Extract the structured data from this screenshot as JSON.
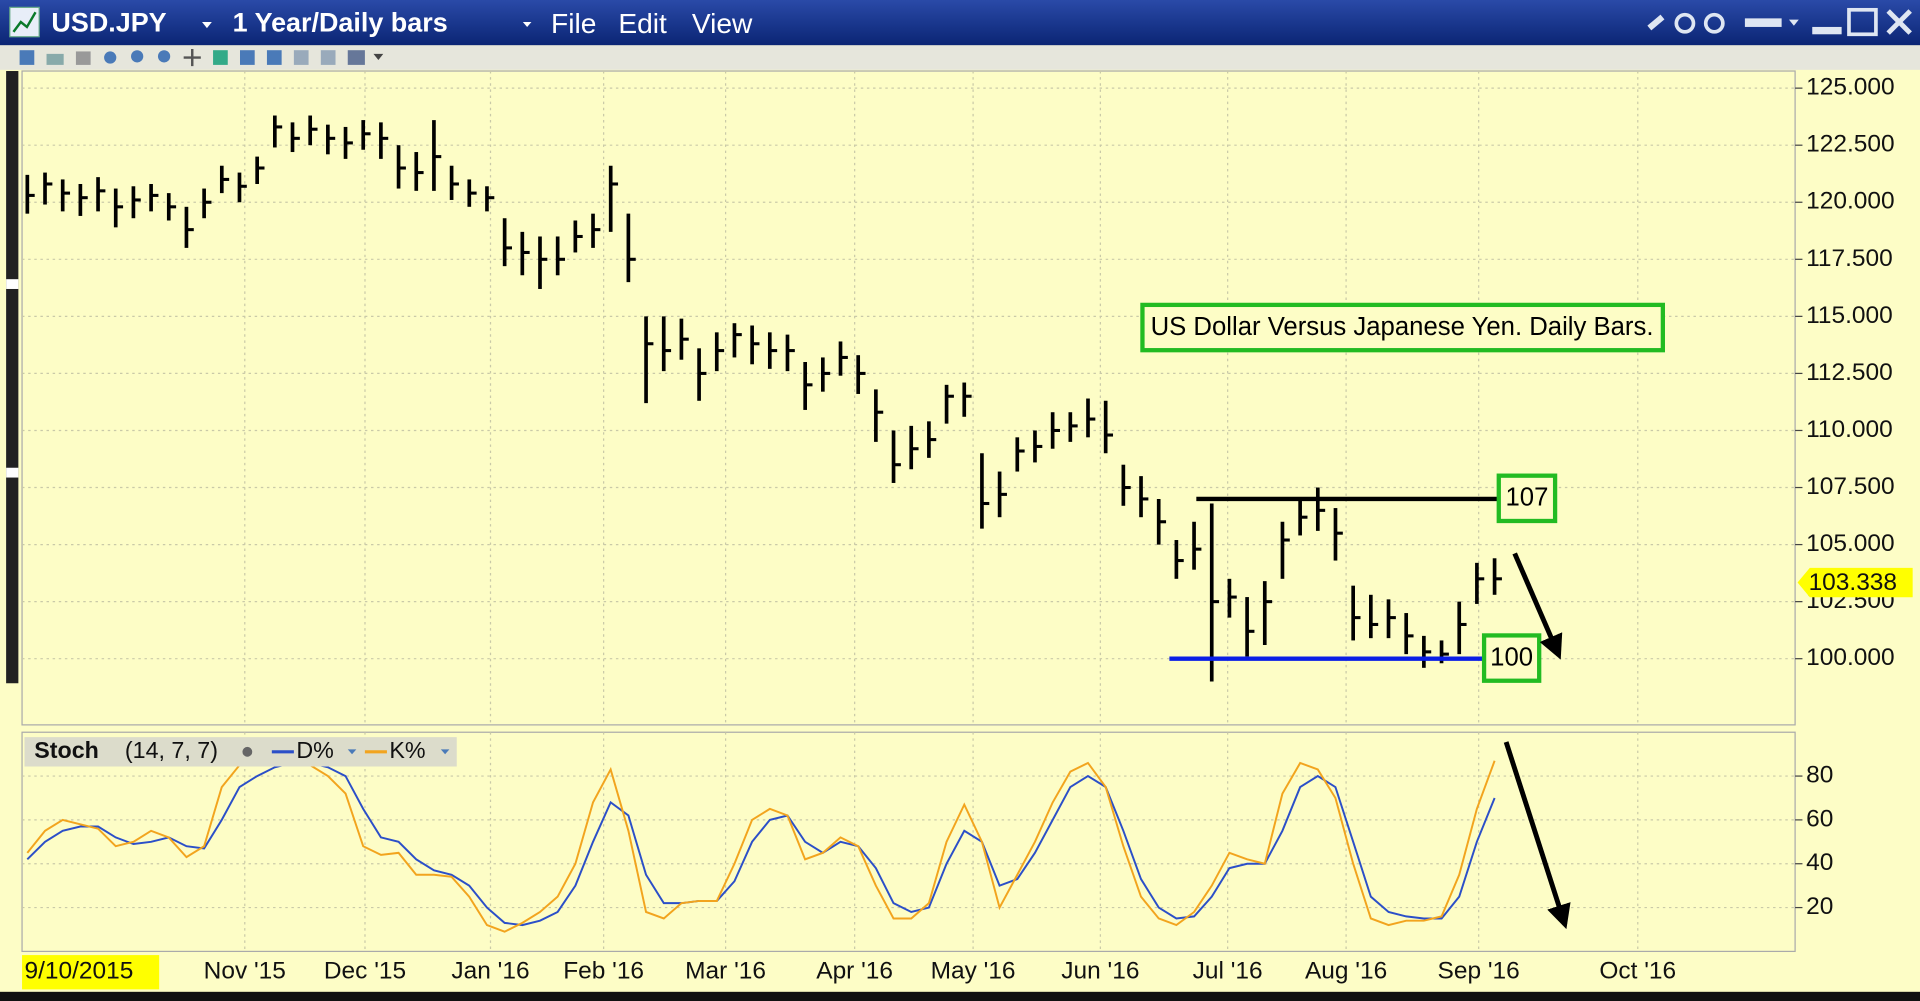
{
  "window": {
    "symbol": "USD.JPY",
    "period": "1 Year/Daily bars",
    "menu": [
      "File",
      "Edit",
      "View"
    ]
  },
  "chart_data": [
    {
      "type": "ohlc",
      "annotation": "US Dollar Versus Japanese Yen. Daily Bars.",
      "series": [
        {
          "color": "#000000",
          "high": [
            121.2,
            121.3,
            121.0,
            120.8,
            121.1,
            120.6,
            120.7,
            120.8,
            120.4,
            119.8,
            120.6,
            121.6,
            121.3,
            122.0,
            123.8,
            123.5,
            123.8,
            123.4,
            123.3,
            123.6,
            123.5,
            122.5,
            122.2,
            123.6,
            121.6,
            121.0,
            120.7,
            119.3,
            118.7,
            118.5,
            118.5,
            119.2,
            119.5,
            121.6,
            119.5,
            115.0,
            115.0,
            114.9,
            113.6,
            114.3,
            114.7,
            114.6,
            114.3,
            114.2,
            113.0,
            113.2,
            113.9,
            113.3,
            111.8,
            110.0,
            110.2,
            110.4,
            112.0,
            112.1,
            109.0,
            108.2,
            109.7,
            110.0,
            110.8,
            110.8,
            111.4,
            111.3,
            108.5,
            108.0,
            107.0,
            105.2,
            106.0,
            106.8,
            103.5,
            102.7,
            103.4,
            106.0,
            107.0,
            107.5,
            106.6,
            103.2,
            102.8,
            102.6,
            102.0,
            101.0,
            100.8,
            102.5,
            104.2,
            104.4
          ],
          "low": [
            119.5,
            119.9,
            119.6,
            119.4,
            119.6,
            118.9,
            119.3,
            119.6,
            119.2,
            118.0,
            119.3,
            120.4,
            120.0,
            120.8,
            122.4,
            122.2,
            122.5,
            122.1,
            121.9,
            122.3,
            121.9,
            120.6,
            120.5,
            120.5,
            120.1,
            119.8,
            119.6,
            117.2,
            116.8,
            116.2,
            116.8,
            117.8,
            118.0,
            118.7,
            116.5,
            111.2,
            112.6,
            113.1,
            111.3,
            112.6,
            113.2,
            112.9,
            112.7,
            112.6,
            110.9,
            111.7,
            112.4,
            111.6,
            109.5,
            107.7,
            108.3,
            108.8,
            110.3,
            110.6,
            105.7,
            106.2,
            108.2,
            108.6,
            109.2,
            109.5,
            109.7,
            109.0,
            106.7,
            106.2,
            105.0,
            103.5,
            103.9,
            99.0,
            101.8,
            100.1,
            100.6,
            103.5,
            105.4,
            105.6,
            104.3,
            100.8,
            100.9,
            100.9,
            100.2,
            99.6,
            99.8,
            100.2,
            102.4,
            102.8
          ],
          "close": [
            120.3,
            120.8,
            120.4,
            120.2,
            120.5,
            119.8,
            120.1,
            120.3,
            119.8,
            118.8,
            120.0,
            121.0,
            120.7,
            121.5,
            123.3,
            122.8,
            123.2,
            122.8,
            122.6,
            123.0,
            122.8,
            121.5,
            121.3,
            122.0,
            120.8,
            120.4,
            120.2,
            118.0,
            117.8,
            117.5,
            117.5,
            118.5,
            118.8,
            120.8,
            117.5,
            113.8,
            113.5,
            114.0,
            112.5,
            113.5,
            114.2,
            113.8,
            113.5,
            113.5,
            112.0,
            112.5,
            113.2,
            112.5,
            110.8,
            108.5,
            109.2,
            109.6,
            111.5,
            111.5,
            106.8,
            107.2,
            109.1,
            109.3,
            110.0,
            110.2,
            110.5,
            109.8,
            107.5,
            107.0,
            106.0,
            104.3,
            104.8,
            102.5,
            102.7,
            101.2,
            102.5,
            105.2,
            106.2,
            106.5,
            105.5,
            101.8,
            101.5,
            101.8,
            101.0,
            100.3,
            100.2,
            101.5,
            103.5,
            103.5
          ]
        }
      ],
      "xlim": [
        -0.3,
        100
      ],
      "ylim": [
        97.1,
        125.75
      ],
      "yticks": [
        {
          "value": 100,
          "label": "100.000"
        },
        {
          "value": 102.5,
          "label": "102.500"
        },
        {
          "value": 105,
          "label": "105.000"
        },
        {
          "value": 107.5,
          "label": "107.500"
        },
        {
          "value": 110,
          "label": "110.000"
        },
        {
          "value": 112.5,
          "label": "112.500"
        },
        {
          "value": 115,
          "label": "115.000"
        },
        {
          "value": 117.5,
          "label": "117.500"
        },
        {
          "value": 120,
          "label": "120.000"
        },
        {
          "value": 122.5,
          "label": "122.500"
        },
        {
          "value": 125,
          "label": "125.000"
        }
      ],
      "grid": true,
      "last_price": 103.338,
      "levels": [
        {
          "value": 107,
          "label": "107",
          "color": "#000000"
        },
        {
          "value": 100,
          "label": "100",
          "color": "#0a1ee6"
        }
      ]
    },
    {
      "type": "line",
      "indicator": "Stoch",
      "params": "(14, 7, 7)",
      "series": [
        {
          "name": "D%",
          "color": "#2b4fc8",
          "values": [
            42,
            50,
            55,
            57,
            57,
            52,
            49,
            50,
            52,
            48,
            47,
            60,
            75,
            80,
            84,
            86,
            86,
            84,
            80,
            65,
            52,
            50,
            42,
            37,
            35,
            30,
            20,
            13,
            12,
            14,
            18,
            30,
            50,
            68,
            62,
            35,
            22,
            22,
            23,
            23,
            32,
            50,
            60,
            62,
            50,
            45,
            50,
            48,
            38,
            22,
            18,
            20,
            40,
            55,
            50,
            30,
            33,
            45,
            60,
            75,
            80,
            75,
            55,
            33,
            20,
            15,
            16,
            25,
            38,
            40,
            40,
            55,
            75,
            80,
            75,
            50,
            25,
            18,
            16,
            15,
            15,
            25,
            50,
            70
          ]
        },
        {
          "name": "K%",
          "color": "#f2a41e",
          "values": [
            45,
            55,
            60,
            58,
            56,
            48,
            50,
            55,
            52,
            43,
            48,
            75,
            85,
            85,
            89,
            88,
            85,
            80,
            72,
            48,
            44,
            45,
            35,
            35,
            34,
            25,
            12,
            9,
            13,
            18,
            25,
            40,
            68,
            83,
            55,
            18,
            15,
            22,
            23,
            23,
            40,
            60,
            65,
            62,
            42,
            45,
            52,
            48,
            30,
            15,
            15,
            22,
            50,
            67,
            50,
            20,
            35,
            50,
            68,
            82,
            86,
            75,
            48,
            25,
            15,
            12,
            18,
            30,
            45,
            42,
            40,
            72,
            86,
            83,
            70,
            40,
            15,
            12,
            14,
            14,
            16,
            35,
            65,
            87
          ]
        }
      ],
      "xlim": [
        -0.3,
        100
      ],
      "ylim": [
        0,
        100
      ],
      "yticks": [
        20,
        40,
        60,
        80
      ],
      "grid": true,
      "start_label": "9/10/2015",
      "xticks": [
        {
          "value": 12.3,
          "label": "Nov '15"
        },
        {
          "value": 19.1,
          "label": "Dec '15"
        },
        {
          "value": 26.2,
          "label": "Jan '16"
        },
        {
          "value": 32.6,
          "label": "Feb '16"
        },
        {
          "value": 39.5,
          "label": "Mar '16"
        },
        {
          "value": 46.8,
          "label": "Apr '16"
        },
        {
          "value": 53.5,
          "label": "May '16"
        },
        {
          "value": 60.7,
          "label": "Jun '16"
        },
        {
          "value": 67.9,
          "label": "Jul '16"
        },
        {
          "value": 74.6,
          "label": "Aug '16"
        },
        {
          "value": 82.1,
          "label": "Sep '16"
        },
        {
          "value": 91.1,
          "label": "Oct '16"
        }
      ]
    }
  ]
}
